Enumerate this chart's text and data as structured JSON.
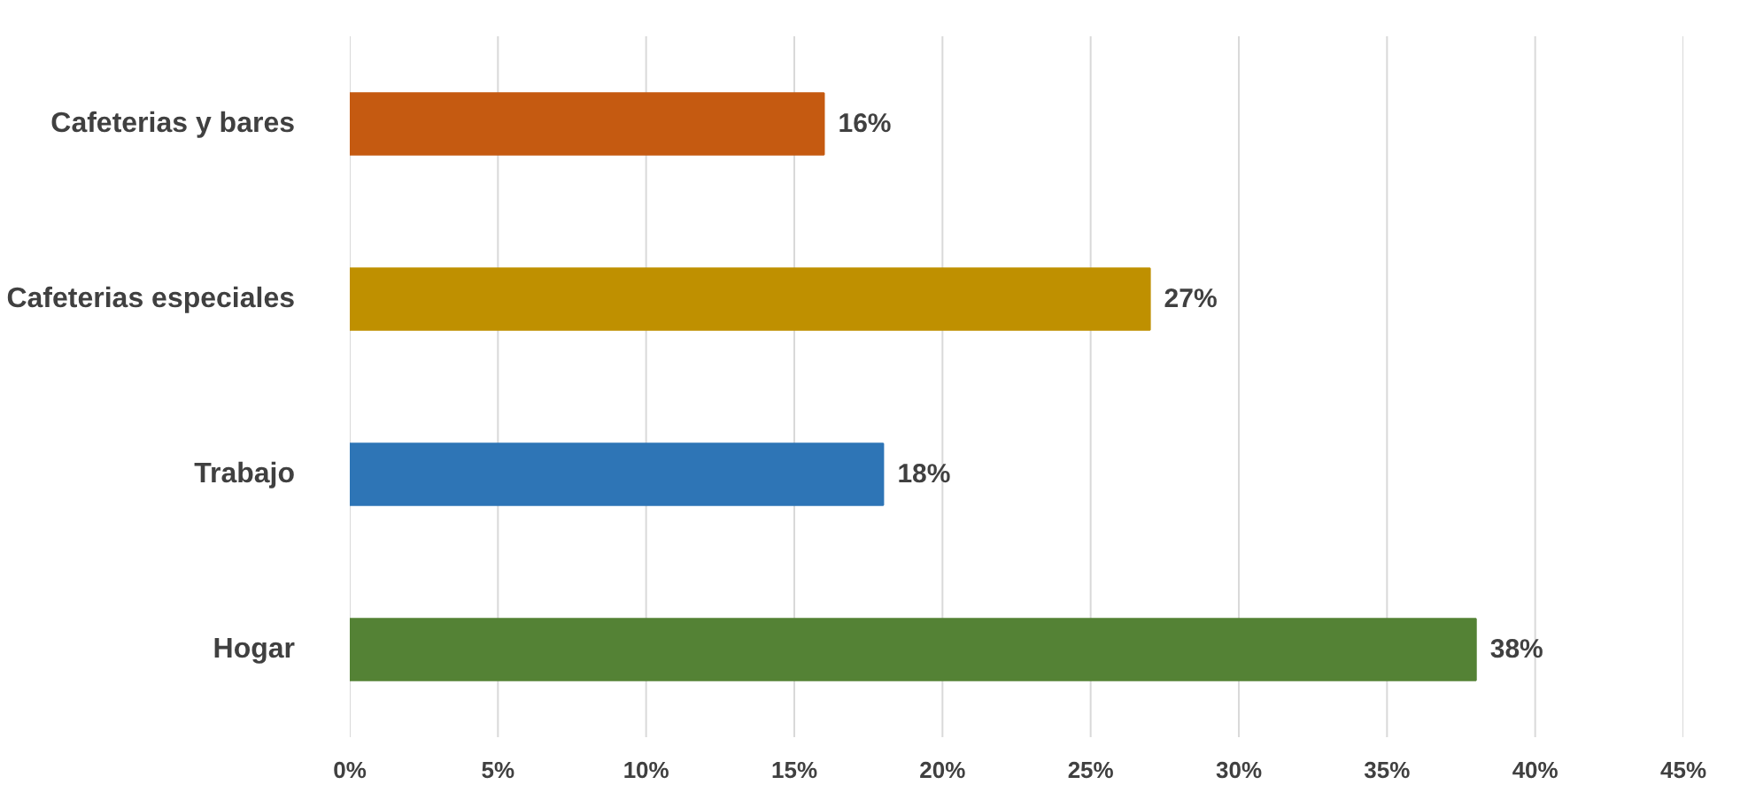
{
  "chart_data": {
    "type": "bar",
    "orientation": "horizontal",
    "categories": [
      "Cafeterias y bares",
      "Cafeterias especiales",
      "Trabajo",
      "Hogar"
    ],
    "values": [
      16,
      27,
      18,
      38
    ],
    "colors": [
      "#c55a11",
      "#bf9000",
      "#2e75b6",
      "#548235"
    ],
    "value_labels": [
      "16%",
      "27%",
      "18%",
      "38%"
    ],
    "xlim": [
      0,
      45
    ],
    "xticks": [
      {
        "value": 0,
        "label": "0%"
      },
      {
        "value": 5,
        "label": "5%"
      },
      {
        "value": 10,
        "label": "10%"
      },
      {
        "value": 15,
        "label": "15%"
      },
      {
        "value": 20,
        "label": "20%"
      },
      {
        "value": 25,
        "label": "25%"
      },
      {
        "value": 30,
        "label": "30%"
      },
      {
        "value": 35,
        "label": "35%"
      },
      {
        "value": 40,
        "label": "40%"
      },
      {
        "value": 45,
        "label": "45%"
      }
    ],
    "grid": "x"
  }
}
